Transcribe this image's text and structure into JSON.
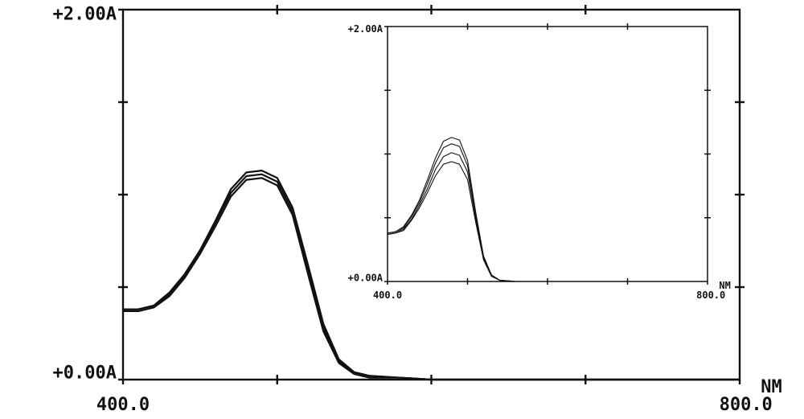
{
  "chart_data": [
    {
      "type": "line",
      "xlabel": "NM",
      "xlim": [
        400,
        800
      ],
      "ylim": [
        0,
        2
      ],
      "xticks": [
        {
          "value": 400,
          "label": "400.0"
        },
        {
          "value": 800,
          "label": "800.0"
        }
      ],
      "yticks": [
        {
          "value": 0,
          "label": "+0.00A"
        },
        {
          "value": 2,
          "label": "+2.00A"
        }
      ],
      "xminor": [
        500,
        600,
        700
      ],
      "yminor": [
        0.5,
        1,
        1.5
      ],
      "x": [
        400,
        410,
        420,
        430,
        440,
        450,
        460,
        470,
        480,
        490,
        500,
        510,
        520,
        530,
        540,
        550,
        560,
        580,
        600,
        700,
        800
      ],
      "series": [
        {
          "color": "#111111",
          "values": [
            0.38,
            0.38,
            0.4,
            0.47,
            0.57,
            0.7,
            0.86,
            1.03,
            1.12,
            1.13,
            1.09,
            0.93,
            0.62,
            0.3,
            0.11,
            0.04,
            0.02,
            0.01,
            0,
            0,
            0
          ]
        },
        {
          "color": "#111111",
          "values": [
            0.38,
            0.38,
            0.4,
            0.46,
            0.56,
            0.69,
            0.85,
            1.01,
            1.1,
            1.11,
            1.07,
            0.91,
            0.6,
            0.28,
            0.1,
            0.04,
            0.02,
            0.01,
            0,
            0,
            0
          ]
        },
        {
          "color": "#111111",
          "values": [
            0.37,
            0.37,
            0.39,
            0.45,
            0.55,
            0.68,
            0.83,
            0.99,
            1.08,
            1.09,
            1.05,
            0.89,
            0.57,
            0.26,
            0.09,
            0.03,
            0.01,
            0.01,
            0,
            0,
            0
          ]
        }
      ]
    },
    {
      "type": "line",
      "xlabel": "NM",
      "xlim": [
        400,
        800
      ],
      "ylim": [
        0,
        2
      ],
      "xticks": [
        {
          "value": 400,
          "label": "400.0"
        },
        {
          "value": 800,
          "label": "800.0"
        }
      ],
      "yticks": [
        {
          "value": 0,
          "label": "+0.00A"
        },
        {
          "value": 2,
          "label": "+2.00A"
        }
      ],
      "xminor": [
        500,
        600,
        700
      ],
      "yminor": [
        0.5,
        1,
        1.5
      ],
      "x": [
        400,
        410,
        420,
        430,
        440,
        450,
        460,
        470,
        480,
        490,
        500,
        510,
        520,
        530,
        540,
        560,
        600,
        700,
        800
      ],
      "series": [
        {
          "color": "#111111",
          "values": [
            0.38,
            0.39,
            0.43,
            0.52,
            0.64,
            0.8,
            0.97,
            1.1,
            1.13,
            1.11,
            0.95,
            0.55,
            0.2,
            0.05,
            0.01,
            0,
            0,
            0,
            0
          ]
        },
        {
          "color": "#111111",
          "values": [
            0.38,
            0.39,
            0.42,
            0.51,
            0.62,
            0.77,
            0.93,
            1.05,
            1.08,
            1.06,
            0.91,
            0.53,
            0.19,
            0.05,
            0.01,
            0,
            0,
            0,
            0
          ]
        },
        {
          "color": "#111111",
          "values": [
            0.37,
            0.38,
            0.41,
            0.49,
            0.6,
            0.73,
            0.88,
            0.98,
            1.01,
            0.99,
            0.86,
            0.5,
            0.18,
            0.05,
            0.01,
            0,
            0,
            0,
            0
          ]
        },
        {
          "color": "#111111",
          "values": [
            0.37,
            0.38,
            0.4,
            0.48,
            0.58,
            0.7,
            0.83,
            0.92,
            0.94,
            0.92,
            0.8,
            0.47,
            0.17,
            0.04,
            0.01,
            0,
            0,
            0,
            0
          ]
        }
      ]
    }
  ]
}
